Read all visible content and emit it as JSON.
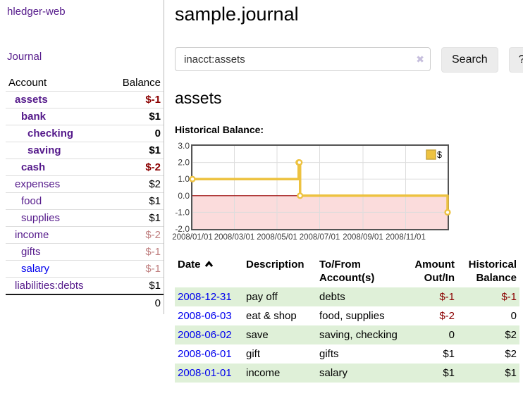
{
  "app": {
    "brand": "hledger-web",
    "nav_journal": "Journal"
  },
  "colors": {
    "link_visited": "#551a8b",
    "link_unvisited": "#0000ee",
    "negative_strong": "#8b0000",
    "negative_faded": "#c08080",
    "row_stripe_green": "#dff0d8",
    "series_gold": "#edc240",
    "negative_region_pink": "#fbdcdc",
    "zero_line_red": "#9b0000"
  },
  "sidebar": {
    "headers": {
      "account": "Account",
      "balance": "Balance"
    },
    "rows": [
      {
        "name": "assets",
        "balance": "$-1",
        "depth": 1,
        "bold": true,
        "negative": true,
        "link": "visited"
      },
      {
        "name": "bank",
        "balance": "$1",
        "depth": 2,
        "bold": true,
        "negative": false,
        "link": "visited"
      },
      {
        "name": "checking",
        "balance": "0",
        "depth": 3,
        "bold": true,
        "negative": false,
        "link": "visited"
      },
      {
        "name": "saving",
        "balance": "$1",
        "depth": 3,
        "bold": true,
        "negative": false,
        "link": "visited"
      },
      {
        "name": "cash",
        "balance": "$-2",
        "depth": 2,
        "bold": true,
        "negative": true,
        "link": "visited"
      },
      {
        "name": "expenses",
        "balance": "$2",
        "depth": 1,
        "bold": false,
        "negative": false,
        "link": "visited"
      },
      {
        "name": "food",
        "balance": "$1",
        "depth": 2,
        "bold": false,
        "negative": false,
        "link": "visited"
      },
      {
        "name": "supplies",
        "balance": "$1",
        "depth": 2,
        "bold": false,
        "negative": false,
        "link": "visited"
      },
      {
        "name": "income",
        "balance": "$-2",
        "depth": 1,
        "bold": false,
        "negative": true,
        "link": "visited"
      },
      {
        "name": "gifts",
        "balance": "$-1",
        "depth": 2,
        "bold": false,
        "negative": true,
        "link": "visited"
      },
      {
        "name": "salary",
        "balance": "$-1",
        "depth": 2,
        "bold": false,
        "negative": true,
        "link": "unvisited"
      },
      {
        "name": "liabilities:debts",
        "balance": "$1",
        "depth": 1,
        "bold": false,
        "negative": false,
        "link": "visited"
      }
    ],
    "total": "0"
  },
  "main": {
    "title": "sample.journal",
    "search": {
      "value": "inacct:assets",
      "clear_glyph": "✖",
      "button_label": "Search",
      "help_label": "?"
    },
    "account_heading": "assets",
    "chart_label": "Historical Balance:",
    "register": {
      "columns": [
        {
          "label": "Date",
          "align": "left",
          "sorted": "asc"
        },
        {
          "label": "Description",
          "align": "left"
        },
        {
          "label": "To/From Account(s)",
          "align": "left"
        },
        {
          "label": "Amount Out/In",
          "align": "right"
        },
        {
          "label": "Historical Balance",
          "align": "right"
        }
      ],
      "rows": [
        {
          "date": "2008-12-31",
          "description": "pay off",
          "accounts": "debts",
          "amount": "$-1",
          "balance": "$-1",
          "amount_negative": true,
          "balance_negative": true
        },
        {
          "date": "2008-06-03",
          "description": "eat & shop",
          "accounts": "food, supplies",
          "amount": "$-2",
          "balance": "0",
          "amount_negative": true,
          "balance_negative": false
        },
        {
          "date": "2008-06-02",
          "description": "save",
          "accounts": "saving, checking",
          "amount": "0",
          "balance": "$2",
          "amount_negative": false,
          "balance_negative": false
        },
        {
          "date": "2008-06-01",
          "description": "gift",
          "accounts": "gifts",
          "amount": "$1",
          "balance": "$2",
          "amount_negative": false,
          "balance_negative": false
        },
        {
          "date": "2008-01-01",
          "description": "income",
          "accounts": "salary",
          "amount": "$1",
          "balance": "$1",
          "amount_negative": false,
          "balance_negative": false
        }
      ]
    }
  },
  "chart_data": {
    "type": "line",
    "step": true,
    "title": "Historical Balance:",
    "series": [
      {
        "name": "$",
        "color": "#edc240",
        "points": [
          {
            "date": "2008-01-01",
            "value": 1
          },
          {
            "date": "2008-06-01",
            "value": 2
          },
          {
            "date": "2008-06-02",
            "value": 2
          },
          {
            "date": "2008-06-03",
            "value": 0
          },
          {
            "date": "2008-12-31",
            "value": -1
          }
        ]
      }
    ],
    "x_ticks": [
      {
        "label": "2008/01/01",
        "date": "2008-01-01"
      },
      {
        "label": "2008/03/01",
        "date": "2008-03-01"
      },
      {
        "label": "2008/05/01",
        "date": "2008-05-01"
      },
      {
        "label": "2008/07/01",
        "date": "2008-07-01"
      },
      {
        "label": "2008/09/01",
        "date": "2008-09-01"
      },
      {
        "label": "2008/11/01",
        "date": "2008-11-01"
      }
    ],
    "y_ticks": [
      {
        "label": "3.0",
        "value": 3
      },
      {
        "label": "2.0",
        "value": 2
      },
      {
        "label": "1.0",
        "value": 1
      },
      {
        "label": "0.0",
        "value": 0
      },
      {
        "label": "-1.0",
        "value": -1
      },
      {
        "label": "-2.0",
        "value": -2
      }
    ],
    "xlim": [
      "2008-01-01",
      "2008-12-31"
    ],
    "ylim": [
      -2,
      3
    ],
    "grid": true,
    "legend_position": "top-right",
    "legend_label": "$",
    "negative_region_fill": "#fbdcdc",
    "zero_line_color": "#9b0000"
  }
}
